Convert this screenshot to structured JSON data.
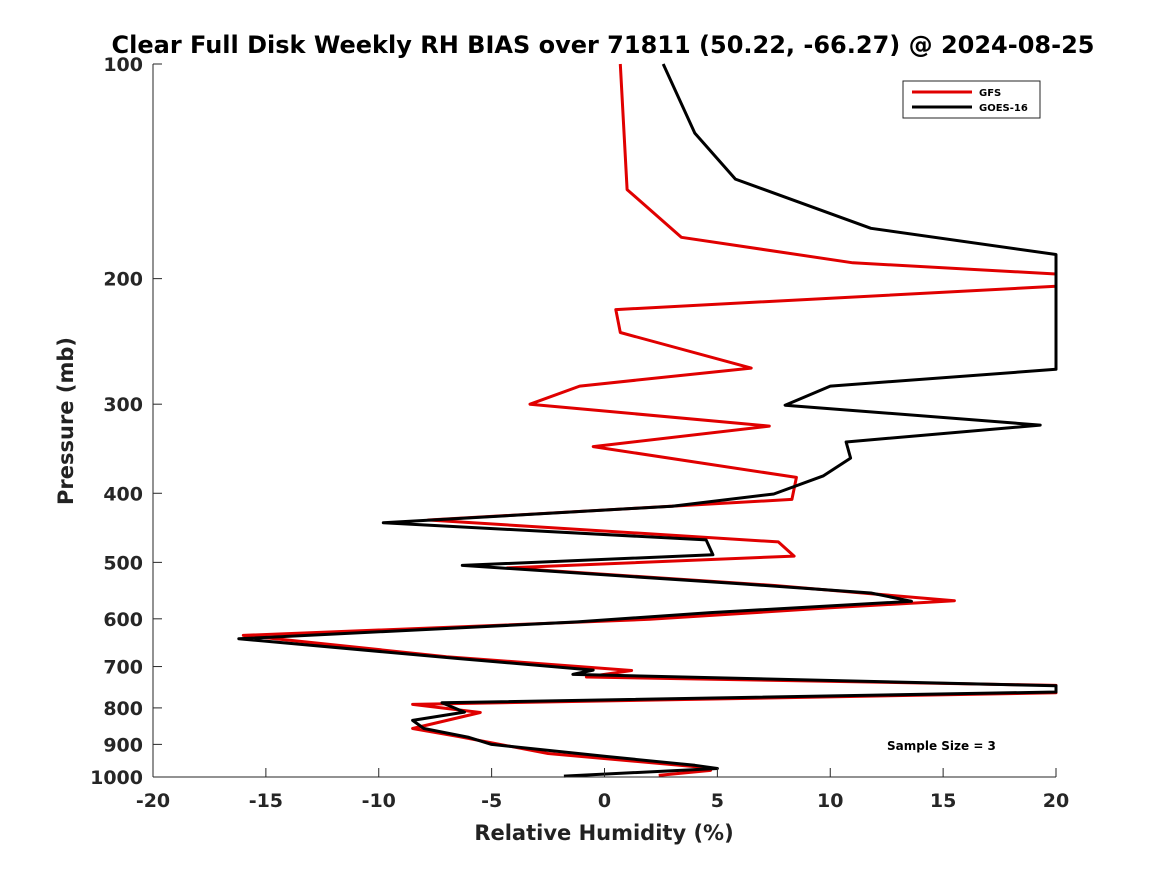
{
  "chart_data": {
    "type": "line",
    "title": "Clear Full Disk Weekly RH BIAS over 71811 (50.22, -66.27) @ 2024-08-25",
    "xlabel": "Relative Humidity (%)",
    "ylabel": "Pressure (mb)",
    "xlim": [
      -20,
      20
    ],
    "ylim": [
      100,
      1000
    ],
    "y_scale": "log",
    "y_reversed": true,
    "x_ticks": [
      -20,
      -15,
      -10,
      -5,
      0,
      5,
      10,
      15,
      20
    ],
    "x_tick_labels": [
      "-20",
      "-15",
      "-10",
      "-5",
      "0",
      "5",
      "10",
      "15",
      "20"
    ],
    "y_ticks": [
      100,
      200,
      300,
      400,
      500,
      600,
      700,
      800,
      900,
      1000
    ],
    "y_tick_labels": [
      "100",
      "200",
      "300",
      "400",
      "500",
      "600",
      "700",
      "800",
      "900",
      "1000"
    ],
    "grid": false,
    "legend_position": "top-right",
    "annotation": "Sample Size = 3",
    "series": [
      {
        "name": "GFS",
        "color": "#e00000",
        "points": [
          [
            0.7,
            100
          ],
          [
            1.0,
            150
          ],
          [
            3.4,
            175
          ],
          [
            11.0,
            190
          ],
          [
            20,
            197
          ],
          [
            20,
            205
          ],
          [
            0.5,
            221
          ],
          [
            0.7,
            238
          ],
          [
            6.5,
            267
          ],
          [
            -1.1,
            283
          ],
          [
            -3.3,
            300
          ],
          [
            7.3,
            322
          ],
          [
            -0.5,
            344
          ],
          [
            8.5,
            380
          ],
          [
            8.3,
            408
          ],
          [
            -7.8,
            436
          ],
          [
            7.7,
            468
          ],
          [
            8.4,
            490
          ],
          [
            -4.3,
            509
          ],
          [
            7.6,
            539
          ],
          [
            15.5,
            566
          ],
          [
            10.0,
            579
          ],
          [
            2.0,
            601
          ],
          [
            -16.0,
            633
          ],
          [
            -7.0,
            678
          ],
          [
            1.2,
            709
          ],
          [
            -0.8,
            724
          ],
          [
            20,
            744
          ],
          [
            20,
            762
          ],
          [
            -8.5,
            791
          ],
          [
            -5.5,
            812
          ],
          [
            -8.5,
            855
          ],
          [
            -6.5,
            877
          ],
          [
            -2.5,
            927
          ],
          [
            4.0,
            967
          ],
          [
            4.7,
            979
          ],
          [
            2.4,
            995
          ]
        ]
      },
      {
        "name": "GOES-16",
        "color": "#000000",
        "points": [
          [
            2.6,
            100
          ],
          [
            4.0,
            125
          ],
          [
            5.8,
            145
          ],
          [
            11.8,
            170
          ],
          [
            20,
            185
          ],
          [
            20,
            268
          ],
          [
            10.0,
            283
          ],
          [
            8.0,
            301
          ],
          [
            19.3,
            321
          ],
          [
            10.7,
            339
          ],
          [
            10.9,
            357
          ],
          [
            9.7,
            378
          ],
          [
            7.5,
            401
          ],
          [
            3.0,
            417
          ],
          [
            -9.8,
            440
          ],
          [
            4.5,
            465
          ],
          [
            4.8,
            488
          ],
          [
            -6.3,
            505
          ],
          [
            6.1,
            536
          ],
          [
            11.8,
            552
          ],
          [
            13.6,
            567
          ],
          [
            4.7,
            588
          ],
          [
            -1.2,
            606
          ],
          [
            -16.2,
            640
          ],
          [
            -6.5,
            682
          ],
          [
            -0.5,
            708
          ],
          [
            -1.4,
            718
          ],
          [
            20,
            745
          ],
          [
            20,
            760
          ],
          [
            -7.2,
            787
          ],
          [
            -6.2,
            811
          ],
          [
            -8.5,
            833
          ],
          [
            -8.0,
            855
          ],
          [
            -6.0,
            880
          ],
          [
            -5.0,
            900
          ],
          [
            0.1,
            936
          ],
          [
            4.0,
            963
          ],
          [
            5.0,
            973
          ],
          [
            -1.8,
            997
          ]
        ]
      }
    ]
  }
}
